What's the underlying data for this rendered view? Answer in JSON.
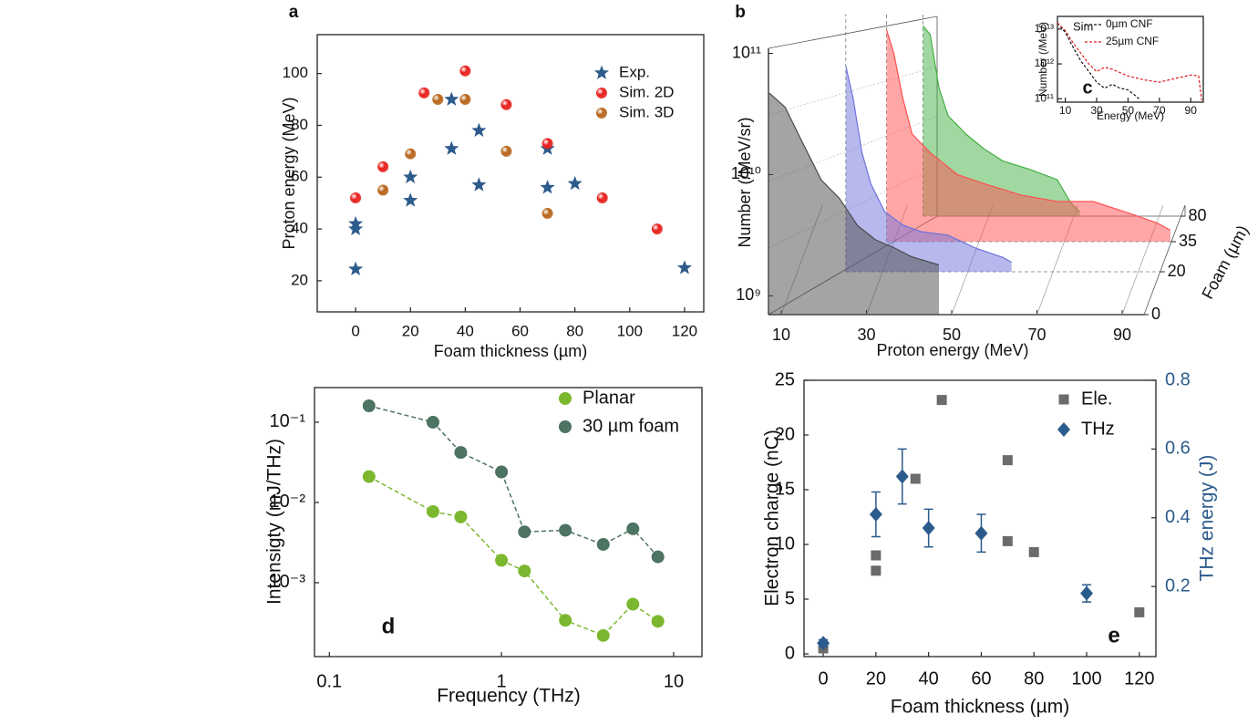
{
  "chart_data": [
    {
      "type": "scatter",
      "panel_label": "a",
      "xlabel": "Foam thickness (µm)",
      "ylabel": "Proton energy (MeV)",
      "xlim": [
        -14,
        127
      ],
      "ylim": [
        8,
        115
      ],
      "xticks": [
        0,
        20,
        40,
        60,
        80,
        100,
        120
      ],
      "yticks": [
        20,
        40,
        60,
        80,
        100
      ],
      "legend": "upper right",
      "series": [
        {
          "name": "Exp.",
          "color": "#2d5b8c",
          "marker": "star",
          "x": [
            0,
            0,
            0,
            20,
            20,
            35,
            35,
            45,
            45,
            70,
            70,
            80,
            120
          ],
          "values": [
            24.5,
            40,
            42,
            51,
            60,
            71,
            90,
            78,
            57,
            71,
            56,
            57.5,
            25
          ]
        },
        {
          "name": "Sim. 2D",
          "color": "#e8201c",
          "marker": "sphere",
          "x": [
            0,
            10,
            25,
            40,
            55,
            70,
            90,
            110
          ],
          "values": [
            52,
            64,
            92.5,
            101,
            88,
            73,
            52,
            40
          ]
        },
        {
          "name": "Sim. 3D",
          "color": "#b8651b",
          "marker": "sphere",
          "x": [
            10,
            20,
            30,
            40,
            55,
            70
          ],
          "values": [
            55,
            69,
            90,
            90,
            70,
            46
          ]
        }
      ]
    },
    {
      "type": "waterfall",
      "panel_label": "b",
      "xlabel": "Proton energy (MeV)",
      "ylabel": "Number (/MeV/sr)",
      "zlabel": "Foam (µm)",
      "xlim": [
        7,
        93
      ],
      "ylog": true,
      "ylim": [
        700000000.0,
        110000000000.0
      ],
      "xticks": [
        10,
        30,
        50,
        70,
        90
      ],
      "yticks": [
        {
          "value": 1000000000.0,
          "label": "10⁹"
        },
        {
          "value": 10000000000.0,
          "label": "10¹⁰"
        },
        {
          "value": 100000000000.0,
          "label": "10¹¹"
        }
      ],
      "zticks": [
        0,
        20,
        35,
        80
      ],
      "series": [
        {
          "color": "#4a4a4a",
          "x": [
            7.2,
            10.9,
            15.1,
            19.4,
            23.6,
            27.9,
            32.1,
            36.4,
            40.6,
            47.0
          ],
          "values": [
            47000000000.0,
            36000000000.0,
            18000000000.0,
            9000000000.0,
            6400000000.0,
            3800000000.0,
            2900000000.0,
            2500000000.0,
            2100000000.0,
            1800000000.0
          ]
        },
        {
          "color": "#6f73dc",
          "x": [
            21.3,
            23.0,
            25.1,
            27.2,
            30.4,
            34.7,
            38.9,
            45.3,
            51.7,
            58.1,
            60.2
          ],
          "values": [
            35000000000.0,
            19000000000.0,
            6700000000.0,
            3700000000.0,
            2200000000.0,
            1700000000.0,
            1500000000.0,
            1400000000.0,
            1100000000.0,
            920000000.0,
            840000000.0
          ]
        },
        {
          "color": "#ff4f4f",
          "x": [
            28.3,
            30.0,
            32.1,
            34.3,
            38.5,
            44.9,
            51.3,
            59.8,
            68.3,
            76.8,
            85.3,
            91.7,
            94.9
          ],
          "values": [
            39000000000.0,
            25000000000.0,
            10700000000.0,
            5400000000.0,
            3800000000.0,
            2500000000.0,
            2100000000.0,
            1700000000.0,
            1500000000.0,
            1500000000.0,
            1200000000.0,
            1000000000.0,
            870000000.0
          ]
        },
        {
          "color": "#43b043",
          "x": [
            34.7,
            36.4,
            38.5,
            40.6,
            44.9,
            49.1,
            53.4,
            59.8,
            66.2,
            69.4,
            71.5
          ],
          "values": [
            26000000000.0,
            22000000000.0,
            7900000000.0,
            4700000000.0,
            3300000000.0,
            2500000000.0,
            2000000000.0,
            1700000000.0,
            1400000000.0,
            900000000.0,
            760000000.0
          ]
        }
      ]
    },
    {
      "type": "line",
      "panel_label": "c",
      "annotation": "Sim",
      "xlabel": "Energy (MeV)",
      "ylabel": "Number (/MeV)",
      "xlim": [
        5,
        98
      ],
      "ylog": true,
      "ylim": [
        80000000000.0,
        23000000000000.0
      ],
      "xticks": [
        10,
        30,
        50,
        70,
        90
      ],
      "yticks": [
        {
          "value": 100000000000.0,
          "label": "10¹¹"
        },
        {
          "value": 1000000000000.0,
          "label": "10¹²"
        },
        {
          "value": 10000000000000.0,
          "label": "10¹³"
        }
      ],
      "legend": "upper right",
      "series": [
        {
          "name": "0µm  CNF",
          "color": "#111111",
          "dash": true,
          "x": [
            5,
            10,
            15,
            20,
            25,
            30,
            35,
            40,
            45,
            50,
            55,
            57
          ],
          "values": [
            15000000000000.0,
            8000000000000.0,
            3000000000000.0,
            1200000000000.0,
            600000000000.0,
            300000000000.0,
            200000000000.0,
            260000000000.0,
            200000000000.0,
            180000000000.0,
            120000000000.0,
            100000000000.0
          ]
        },
        {
          "name": "25µm CNF",
          "color": "#e01b1b",
          "dash": true,
          "x": [
            5,
            10,
            15,
            20,
            25,
            30,
            35,
            40,
            50,
            60,
            70,
            80,
            90,
            95,
            97
          ],
          "values": [
            15000000000000.0,
            9000000000000.0,
            4000000000000.0,
            2000000000000.0,
            1000000000000.0,
            600000000000.0,
            800000000000.0,
            700000000000.0,
            450000000000.0,
            350000000000.0,
            300000000000.0,
            380000000000.0,
            480000000000.0,
            450000000000.0,
            90000000000.0
          ]
        }
      ]
    },
    {
      "type": "line",
      "panel_label": "d",
      "xlabel": "Frequency (THz)",
      "ylabel": "Intensigty (mJ/THz)",
      "xlog": true,
      "xlim": [
        0.082,
        14.6
      ],
      "ylog": true,
      "ylim": [
        0.00012,
        0.27
      ],
      "xticks": [
        0.1,
        1,
        10
      ],
      "yticks": [
        {
          "value": 0.001,
          "label": "10⁻³"
        },
        {
          "value": 0.01,
          "label": "10⁻²"
        },
        {
          "value": 0.1,
          "label": "10⁻¹"
        }
      ],
      "legend": "upper right",
      "x": [
        0.17,
        0.4,
        0.58,
        1.0,
        1.36,
        2.35,
        3.9,
        5.8,
        8.1
      ],
      "series": [
        {
          "name": "Planar",
          "color": "#7cb82f",
          "dash": true,
          "marker": "circle",
          "values": [
            0.021,
            0.0077,
            0.0066,
            0.0019,
            0.0014,
            0.00034,
            0.00022,
            0.00054,
            0.00033
          ]
        },
        {
          "name": "30 µm foam",
          "color": "#4d7362",
          "dash": true,
          "marker": "circle",
          "values": [
            0.16,
            0.1,
            0.042,
            0.024,
            0.0043,
            0.0045,
            0.003,
            0.0047,
            0.0021
          ]
        }
      ]
    },
    {
      "type": "scatter",
      "panel_label": "e",
      "xlabel": "Foam thickness (µm)",
      "ylabel": "Electron charge (nC)",
      "y2label": "THz energy (J)",
      "y2color": "#2b5b8c",
      "xlim": [
        -7.3,
        126.3
      ],
      "ylim": [
        -0.25,
        25
      ],
      "y2lim": [
        -0.004,
        0.8
      ],
      "xticks": [
        0,
        20,
        40,
        60,
        80,
        100,
        120
      ],
      "yticks": [
        0,
        5,
        10,
        15,
        20,
        25
      ],
      "y2ticks": [
        0.2,
        0.4,
        0.6,
        0.8
      ],
      "legend": "upper right",
      "series": [
        {
          "name": "Ele.",
          "color": "#6b6b6b",
          "marker": "square",
          "x": [
            0,
            20,
            20,
            35,
            45,
            70,
            70,
            80,
            120
          ],
          "values": [
            0.5,
            9,
            7.6,
            16,
            23.2,
            17.7,
            10.3,
            9.3,
            3.8
          ]
        },
        {
          "name": "THz",
          "color": "#2b5b8c",
          "marker": "diamond",
          "axis": "y2",
          "x": [
            0,
            20,
            30,
            40,
            60,
            100
          ],
          "values": [
            0.035,
            0.41,
            0.52,
            0.37,
            0.355,
            0.18
          ],
          "errors": [
            0.01,
            0.065,
            0.08,
            0.055,
            0.055,
            0.025
          ]
        }
      ]
    }
  ]
}
